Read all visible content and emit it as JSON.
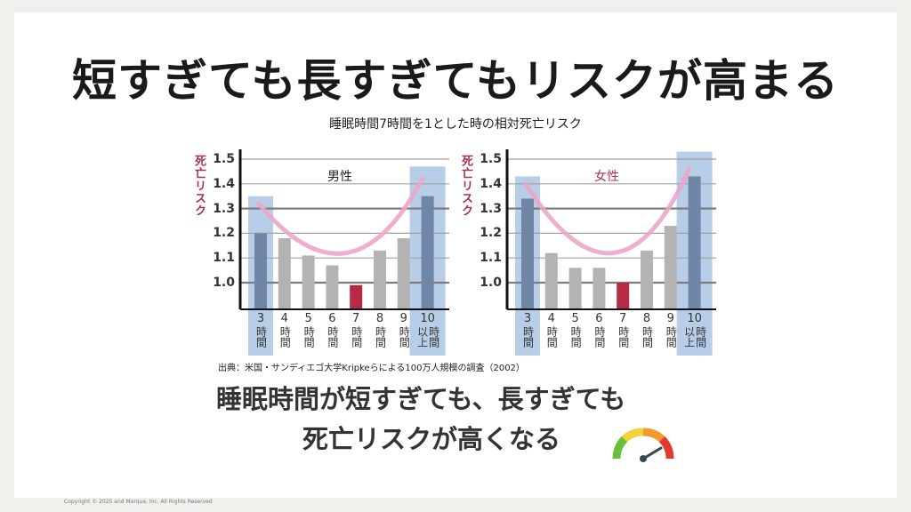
{
  "title": "短すぎても長すぎてもリスクが高まる",
  "subtitle": "睡眠時間7時間を1とした時の相対死亡リスク",
  "chart_data": [
    {
      "type": "bar",
      "title": "男性",
      "ylabel": "死亡リスク",
      "categories": [
        "3時間",
        "4時間",
        "5時間",
        "6時間",
        "7時間",
        "8時間",
        "9時間",
        "10時間以上"
      ],
      "category_top": [
        "3",
        "4",
        "5",
        "6",
        "7",
        "8",
        "9",
        "10"
      ],
      "category_bottom": [
        "時間",
        "時間",
        "時間",
        "時間",
        "時間",
        "時間",
        "時間",
        "以上時間"
      ],
      "values": [
        1.2,
        1.18,
        1.11,
        1.07,
        0.99,
        1.13,
        1.18,
        1.35
      ],
      "yticks": [
        "1.0",
        "1.1",
        "1.2",
        "1.3",
        "1.4",
        "1.5"
      ],
      "ylim": [
        0.89,
        1.52
      ],
      "highlighted": [
        "3時間",
        "10時間以上"
      ],
      "reference": "7時間"
    },
    {
      "type": "bar",
      "title": "女性",
      "ylabel": "死亡リスク",
      "categories": [
        "3時間",
        "4時間",
        "5時間",
        "6時間",
        "7時間",
        "8時間",
        "9時間",
        "10時間以上"
      ],
      "category_top": [
        "3",
        "4",
        "5",
        "6",
        "7",
        "8",
        "9",
        "10"
      ],
      "category_bottom": [
        "時間",
        "時間",
        "時間",
        "時間",
        "時間",
        "時間",
        "時間",
        "以上時間"
      ],
      "values": [
        1.34,
        1.12,
        1.06,
        1.06,
        1.0,
        1.13,
        1.23,
        1.43
      ],
      "yticks": [
        "1.0",
        "1.1",
        "1.2",
        "1.3",
        "1.4",
        "1.5"
      ],
      "ylim": [
        0.89,
        1.52
      ],
      "highlighted": [
        "3時間",
        "10時間以上"
      ],
      "reference": "7時間"
    }
  ],
  "source": "出典：米国・サンディエゴ大学Kripkeらによる100万人規模の調査（2002）",
  "message_line1": "睡眠時間が短すぎても、長すぎても",
  "message_line2": "死亡リスクが高くなる",
  "copyright": "Copyright © 2025 and Marque, Inc. All Rights Reserved",
  "colors": {
    "bar": "#b3b3b3",
    "highlight_bar": "#6f86a6",
    "highlight_bg": "#b8cde8",
    "reference_bar": "#b52a45",
    "curve": "#eca6c9",
    "ylabel": "#a8324f"
  }
}
